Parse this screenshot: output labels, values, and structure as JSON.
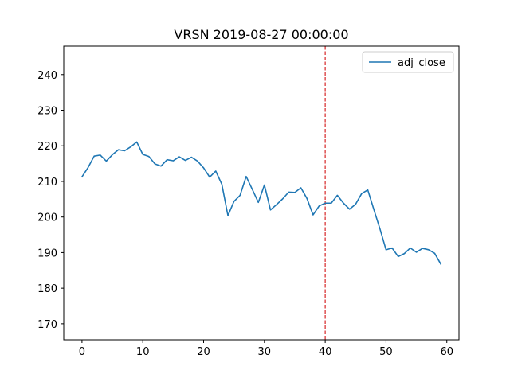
{
  "chart_data": {
    "type": "line",
    "title": "VRSN 2019-08-27 00:00:00",
    "xlabel": "",
    "ylabel": "",
    "xlim": [
      -3,
      62
    ],
    "ylim": [
      165.5,
      248
    ],
    "xticks": [
      0,
      10,
      20,
      30,
      40,
      50,
      60
    ],
    "yticks": [
      170,
      180,
      190,
      200,
      210,
      220,
      230,
      240
    ],
    "grid": false,
    "legend_position": "upper right",
    "series": [
      {
        "name": "adj_close",
        "color": "#1f77b4",
        "x": [
          0,
          1,
          2,
          3,
          4,
          5,
          6,
          7,
          8,
          9,
          10,
          11,
          12,
          13,
          14,
          15,
          16,
          17,
          18,
          19,
          20,
          21,
          22,
          23,
          24,
          25,
          26,
          27,
          28,
          29,
          30,
          31,
          32,
          33,
          34,
          35,
          36,
          37,
          38,
          39,
          40,
          41,
          42,
          43,
          44,
          45,
          46,
          47,
          48,
          49,
          50,
          51,
          52,
          53,
          54,
          55,
          56,
          57,
          58,
          59
        ],
        "values": [
          211.3,
          213.9,
          217.1,
          217.4,
          215.7,
          217.5,
          218.9,
          218.6,
          219.7,
          221.1,
          217.6,
          217.0,
          214.9,
          214.3,
          216.1,
          215.8,
          216.9,
          215.9,
          216.8,
          215.7,
          213.8,
          211.2,
          212.9,
          209.2,
          200.4,
          204.4,
          206.1,
          211.4,
          207.8,
          204.1,
          209.0,
          202.0,
          203.5,
          205.1,
          207.0,
          206.9,
          208.2,
          205.2,
          200.6,
          203.1,
          203.9,
          203.9,
          206.1,
          203.9,
          202.2,
          203.6,
          206.6,
          207.6,
          202.1,
          196.7,
          190.8,
          191.3,
          188.9,
          189.7,
          191.3,
          190.1,
          191.2,
          190.8,
          189.8,
          186.8
        ]
      }
    ],
    "reference_line": {
      "axis": "x",
      "value": 40,
      "color": "#d62728",
      "style": "dashed"
    }
  }
}
